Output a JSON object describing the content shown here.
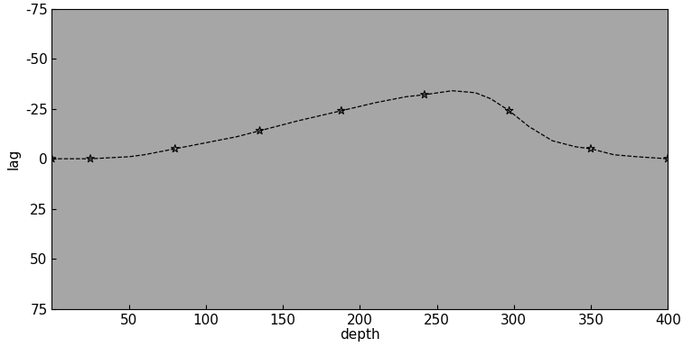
{
  "chart_data": {
    "type": "line",
    "x_label": "depth",
    "y_label": "lag",
    "xlim": [
      0,
      400
    ],
    "xticks": [
      50,
      100,
      150,
      200,
      250,
      300,
      350,
      400
    ],
    "ylim": [
      75,
      -75
    ],
    "yticks": [
      -75,
      -50,
      -25,
      0,
      25,
      50,
      75
    ],
    "series": [
      {
        "type": "line",
        "color": "#000000",
        "line_style": "dashed",
        "x": [
          0,
          25,
          50,
          60,
          80,
          100,
          120,
          135,
          160,
          188,
          210,
          230,
          242,
          260,
          275,
          285,
          297,
          310,
          325,
          340,
          350,
          365,
          380,
          400
        ],
        "values": [
          0,
          0,
          -1,
          -2,
          -5,
          -8,
          -11,
          -14,
          -19,
          -24,
          -28,
          -31,
          -32,
          -34,
          -33,
          -30,
          -24,
          -16,
          -9,
          -6,
          -5,
          -2,
          -1,
          0
        ]
      },
      {
        "type": "scatter",
        "color": "#000000",
        "marker": "star",
        "x": [
          0,
          25,
          80,
          135,
          188,
          242,
          297,
          350,
          400
        ],
        "values": [
          0,
          0,
          -5,
          -14,
          -24,
          -32,
          -24,
          -5,
          0
        ]
      }
    ]
  }
}
